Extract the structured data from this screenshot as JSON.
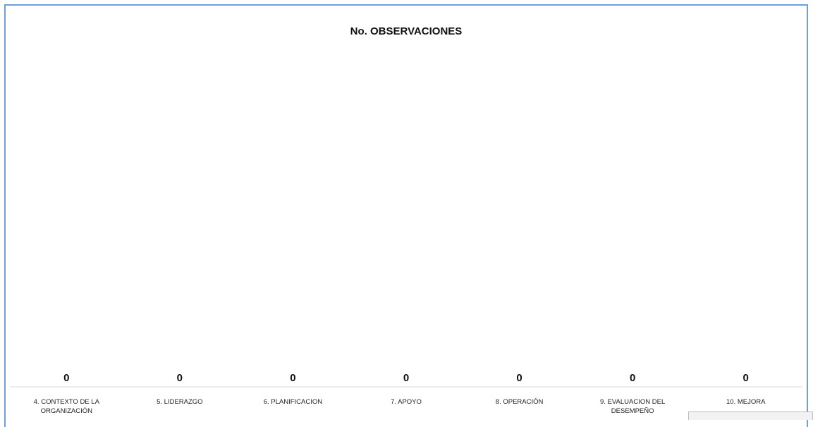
{
  "chart_data": {
    "type": "bar",
    "title": "No. OBSERVACIONES",
    "categories": [
      "4. CONTEXTO DE LA ORGANIZACIÓN",
      "5. LIDERAZGO",
      "6. PLANIFICACION",
      "7. APOYO",
      "8. OPERACIÓN",
      "9. EVALUACION DEL DESEMPEÑO",
      "10. MEJORA"
    ],
    "values": [
      0,
      0,
      0,
      0,
      0,
      0,
      0
    ],
    "xlabel": "",
    "ylabel": "",
    "grid": false,
    "legend": "none",
    "bar_color": "#4f81bd",
    "axis_color": "#d9d9d9"
  }
}
